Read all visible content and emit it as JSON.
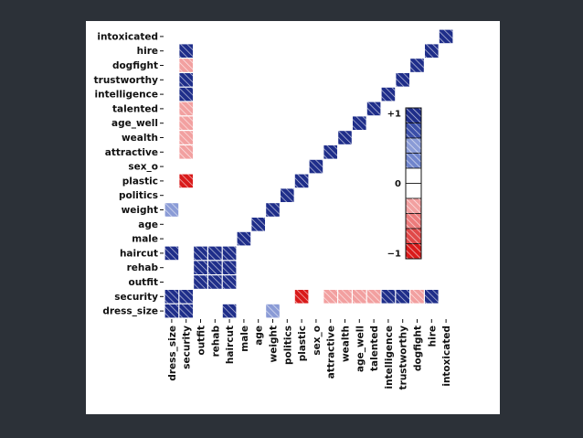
{
  "chart_data": {
    "type": "heatmap",
    "title": "",
    "variables": [
      "dress_size",
      "security",
      "outfit",
      "rehab",
      "haircut",
      "male",
      "age",
      "weight",
      "politics",
      "plastic",
      "sex_o",
      "attractive",
      "wealth",
      "age_well",
      "talented",
      "intelligence",
      "trustworthy",
      "dogfight",
      "hire",
      "intoxicated"
    ],
    "value_range": [
      -1,
      1
    ],
    "colorbar_ticks": [
      "+1",
      "0",
      "−1"
    ],
    "matrix": [
      [
        1.0,
        0.85,
        0.0,
        0.0,
        0.8,
        0.0,
        0.0,
        0.3,
        0.0,
        0.0,
        0.0,
        0.0,
        0.0,
        0.0,
        0.0,
        0.0,
        0.0,
        0.0,
        0.0,
        0.0
      ],
      [
        0.85,
        1.0,
        0.0,
        0.0,
        0.0,
        0.0,
        0.0,
        0.0,
        0.0,
        -0.8,
        0.0,
        -0.5,
        -0.5,
        -0.6,
        -0.6,
        0.8,
        0.8,
        -0.5,
        1.0,
        0.0
      ],
      [
        0.0,
        0.0,
        1.0,
        0.85,
        0.85,
        0.0,
        0.0,
        0.0,
        0.0,
        0.0,
        0.0,
        0.0,
        0.0,
        0.0,
        0.0,
        0.0,
        0.0,
        0.0,
        0.0,
        0.0
      ],
      [
        0.0,
        0.0,
        0.85,
        1.0,
        0.8,
        0.0,
        0.0,
        0.0,
        0.0,
        0.0,
        0.0,
        0.0,
        0.0,
        0.0,
        0.0,
        0.0,
        0.0,
        0.0,
        0.0,
        0.0
      ],
      [
        0.8,
        0.0,
        0.85,
        0.8,
        1.0,
        0.0,
        0.0,
        0.0,
        0.0,
        0.0,
        0.0,
        0.0,
        0.0,
        0.0,
        0.0,
        0.0,
        0.0,
        0.0,
        0.0,
        0.0
      ],
      [
        0.0,
        0.0,
        0.0,
        0.0,
        0.0,
        1.0,
        0.0,
        0.0,
        0.0,
        0.0,
        0.0,
        0.0,
        0.0,
        0.0,
        0.0,
        0.0,
        0.0,
        0.0,
        0.0,
        0.0
      ],
      [
        0.0,
        0.0,
        0.0,
        0.0,
        0.0,
        0.0,
        1.0,
        0.0,
        0.0,
        0.0,
        0.0,
        0.0,
        0.0,
        0.0,
        0.0,
        0.0,
        0.0,
        0.0,
        0.0,
        0.0
      ],
      [
        0.3,
        0.0,
        0.0,
        0.0,
        0.0,
        0.0,
        0.0,
        1.0,
        0.0,
        0.0,
        0.0,
        0.0,
        0.0,
        0.0,
        0.0,
        0.0,
        0.0,
        0.0,
        0.0,
        0.0
      ],
      [
        0.0,
        0.0,
        0.0,
        0.0,
        0.0,
        0.0,
        0.0,
        0.0,
        1.0,
        0.0,
        0.0,
        0.0,
        0.0,
        0.0,
        0.0,
        0.0,
        0.0,
        0.0,
        0.0,
        0.0
      ],
      [
        0.0,
        -0.8,
        0.0,
        0.0,
        0.0,
        0.0,
        0.0,
        0.0,
        0.0,
        1.0,
        0.0,
        0.0,
        0.0,
        0.0,
        0.0,
        0.0,
        0.0,
        0.0,
        0.0,
        0.0
      ],
      [
        0.0,
        0.0,
        0.0,
        0.0,
        0.0,
        0.0,
        0.0,
        0.0,
        0.0,
        0.0,
        1.0,
        0.0,
        0.0,
        0.0,
        0.0,
        0.0,
        0.0,
        0.0,
        0.0,
        0.0
      ],
      [
        0.0,
        -0.5,
        0.0,
        0.0,
        0.0,
        0.0,
        0.0,
        0.0,
        0.0,
        0.0,
        0.0,
        1.0,
        0.0,
        0.0,
        0.0,
        0.0,
        0.0,
        0.0,
        0.0,
        0.0
      ],
      [
        0.0,
        -0.5,
        0.0,
        0.0,
        0.0,
        0.0,
        0.0,
        0.0,
        0.0,
        0.0,
        0.0,
        0.0,
        1.0,
        0.0,
        0.0,
        0.0,
        0.0,
        0.0,
        0.0,
        0.0
      ],
      [
        0.0,
        -0.6,
        0.0,
        0.0,
        0.0,
        0.0,
        0.0,
        0.0,
        0.0,
        0.0,
        0.0,
        0.0,
        0.0,
        1.0,
        0.0,
        0.0,
        0.0,
        0.0,
        0.0,
        0.0
      ],
      [
        0.0,
        -0.6,
        0.0,
        0.0,
        0.0,
        0.0,
        0.0,
        0.0,
        0.0,
        0.0,
        0.0,
        0.0,
        0.0,
        0.0,
        1.0,
        0.0,
        0.0,
        0.0,
        0.0,
        0.0
      ],
      [
        0.0,
        0.8,
        0.0,
        0.0,
        0.0,
        0.0,
        0.0,
        0.0,
        0.0,
        0.0,
        0.0,
        0.0,
        0.0,
        0.0,
        0.0,
        1.0,
        0.0,
        0.0,
        0.0,
        0.0
      ],
      [
        0.0,
        0.8,
        0.0,
        0.0,
        0.0,
        0.0,
        0.0,
        0.0,
        0.0,
        0.0,
        0.0,
        0.0,
        0.0,
        0.0,
        0.0,
        0.0,
        1.0,
        0.0,
        0.0,
        0.0
      ],
      [
        0.0,
        -0.5,
        0.0,
        0.0,
        0.0,
        0.0,
        0.0,
        0.0,
        0.0,
        0.0,
        0.0,
        0.0,
        0.0,
        0.0,
        0.0,
        0.0,
        0.0,
        1.0,
        0.0,
        0.0
      ],
      [
        0.0,
        1.0,
        0.0,
        0.0,
        0.0,
        0.0,
        0.0,
        0.0,
        0.0,
        0.0,
        0.0,
        0.0,
        0.0,
        0.0,
        0.0,
        0.0,
        0.0,
        0.0,
        1.0,
        0.0
      ],
      [
        0.0,
        0.0,
        0.0,
        0.0,
        0.0,
        0.0,
        0.0,
        0.0,
        0.0,
        0.0,
        0.0,
        0.0,
        0.0,
        0.0,
        0.0,
        0.0,
        0.0,
        0.0,
        0.0,
        1.0
      ]
    ],
    "colors": {
      "strong_positive": "#1f2e8a",
      "weak_positive": "#8a9bd6",
      "weak_negative": "#f2a0a0",
      "strong_negative": "#d91a1a"
    }
  }
}
